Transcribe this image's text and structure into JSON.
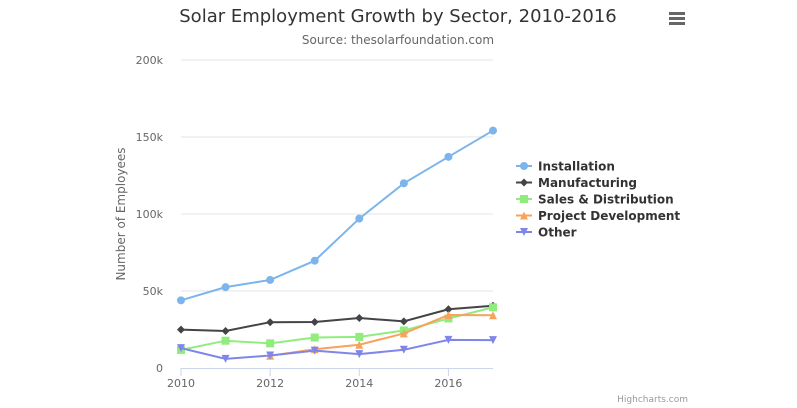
{
  "chart_data": {
    "type": "line",
    "title": "Solar Employment Growth by Sector, 2010-2016",
    "subtitle": "Source: thesolarfoundation.com",
    "ylabel": "Number of Employees",
    "xlabel": "",
    "x": [
      2010,
      2011,
      2012,
      2013,
      2014,
      2015,
      2016,
      2017
    ],
    "xticks": [
      "2010",
      "2012",
      "2014",
      "2016"
    ],
    "yticks": [
      "0",
      "50k",
      "100k",
      "150k",
      "200k"
    ],
    "xlim": [
      2010,
      2017
    ],
    "ylim": [
      0,
      200000
    ],
    "grid": "horizontal",
    "legend": "right",
    "series": [
      {
        "name": "Installation",
        "color": "#7cb5ec",
        "marker": "circle",
        "values": [
          43934,
          52503,
          57177,
          69658,
          97031,
          119931,
          137133,
          154175
        ]
      },
      {
        "name": "Manufacturing",
        "color": "#434348",
        "marker": "diamond",
        "values": [
          24916,
          24064,
          29742,
          29851,
          32490,
          30282,
          38121,
          40434
        ]
      },
      {
        "name": "Sales & Distribution",
        "color": "#90ed7d",
        "marker": "square",
        "values": [
          11744,
          17722,
          16005,
          19771,
          20185,
          24377,
          32147,
          39387
        ]
      },
      {
        "name": "Project Development",
        "color": "#f7a35c",
        "marker": "triangle",
        "values": [
          null,
          null,
          7988,
          12169,
          15112,
          22452,
          34400,
          34227
        ]
      },
      {
        "name": "Other",
        "color": "#8085e9",
        "marker": "triangle-down",
        "values": [
          12908,
          5948,
          8105,
          11248,
          8989,
          11816,
          18274,
          18111
        ]
      }
    ],
    "credits": "Highcharts.com"
  },
  "menu_icon": "hamburger-menu-icon"
}
